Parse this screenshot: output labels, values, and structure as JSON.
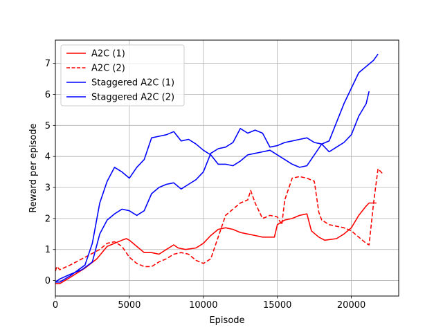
{
  "chart_data": {
    "type": "line",
    "xlabel": "Episode",
    "ylabel": "Reward per episode",
    "xlim": [
      0,
      23200
    ],
    "ylim": [
      -0.5,
      7.75
    ],
    "xticks": [
      0,
      5000,
      10000,
      15000,
      20000
    ],
    "yticks": [
      0,
      1,
      2,
      3,
      4,
      5,
      6,
      7
    ],
    "grid": true,
    "legend_position": "upper-left",
    "series": [
      {
        "name": "A2C (1)",
        "color": "#ff0000",
        "dash": "solid",
        "x": [
          0,
          300,
          1000,
          2000,
          2800,
          3500,
          4000,
          4500,
          4800,
          5000,
          5500,
          6000,
          6500,
          7000,
          7500,
          8000,
          8300,
          8800,
          9500,
          10000,
          10500,
          11000,
          11500,
          12000,
          12500,
          13000,
          13500,
          14000,
          14500,
          14800,
          15000,
          15500,
          16000,
          16500,
          17000,
          17300,
          17800,
          18200,
          19000,
          19500,
          20000,
          20500,
          21000,
          21200,
          21700
        ],
        "y": [
          -0.1,
          -0.1,
          0.1,
          0.4,
          0.7,
          1.1,
          1.2,
          1.3,
          1.35,
          1.3,
          1.1,
          0.9,
          0.9,
          0.85,
          1.0,
          1.15,
          1.05,
          1.0,
          1.05,
          1.2,
          1.45,
          1.65,
          1.7,
          1.65,
          1.55,
          1.5,
          1.45,
          1.4,
          1.4,
          1.4,
          1.8,
          1.95,
          2.0,
          2.1,
          2.15,
          1.6,
          1.4,
          1.3,
          1.35,
          1.5,
          1.7,
          2.1,
          2.4,
          2.5,
          2.5
        ]
      },
      {
        "name": "A2C (2)",
        "color": "#ff0000",
        "dash": "dashed",
        "x": [
          0,
          100,
          300,
          1000,
          2000,
          3000,
          3500,
          4000,
          4500,
          5000,
          5500,
          6000,
          6500,
          7000,
          7500,
          8000,
          8500,
          9000,
          9500,
          10000,
          10500,
          11000,
          11500,
          12000,
          12500,
          13000,
          13200,
          13500,
          14000,
          14500,
          15000,
          15300,
          15500,
          16000,
          16500,
          17000,
          17500,
          17800,
          18000,
          18500,
          19000,
          19500,
          20000,
          20500,
          21000,
          21200,
          21500,
          21800,
          22100
        ],
        "y": [
          0.3,
          0.45,
          0.35,
          0.5,
          0.75,
          1.0,
          1.2,
          1.25,
          1.1,
          0.75,
          0.55,
          0.45,
          0.45,
          0.6,
          0.7,
          0.85,
          0.9,
          0.85,
          0.65,
          0.55,
          0.7,
          1.4,
          2.1,
          2.3,
          2.5,
          2.6,
          2.9,
          2.5,
          2.0,
          2.1,
          2.05,
          1.8,
          2.6,
          3.3,
          3.35,
          3.3,
          3.2,
          2.2,
          1.95,
          1.8,
          1.75,
          1.7,
          1.6,
          1.4,
          1.2,
          1.15,
          2.5,
          3.6,
          3.45
        ]
      },
      {
        "name": "Staggered A2C (1)",
        "color": "#0000ff",
        "dash": "solid",
        "x": [
          0,
          300,
          1000,
          2000,
          2500,
          3000,
          3500,
          4000,
          4500,
          5000,
          5500,
          6000,
          6500,
          7000,
          7500,
          8000,
          8500,
          9000,
          9500,
          10000,
          10500,
          11000,
          11500,
          12000,
          12500,
          13000,
          13500,
          14000,
          14500,
          15000,
          15500,
          16000,
          16500,
          17000,
          17500,
          18000,
          18500,
          19000,
          19500,
          20000,
          20500,
          21000,
          21500,
          21800
        ],
        "y": [
          -0.05,
          -0.05,
          0.15,
          0.5,
          1.2,
          2.5,
          3.2,
          3.65,
          3.5,
          3.3,
          3.65,
          3.9,
          4.6,
          4.65,
          4.7,
          4.8,
          4.5,
          4.55,
          4.4,
          4.2,
          4.05,
          3.75,
          3.75,
          3.7,
          3.85,
          4.05,
          4.1,
          4.15,
          4.2,
          4.05,
          3.9,
          3.75,
          3.65,
          3.7,
          4.05,
          4.4,
          4.5,
          5.1,
          5.7,
          6.2,
          6.7,
          6.9,
          7.1,
          7.3
        ]
      },
      {
        "name": "Staggered A2C (2)",
        "color": "#0000ff",
        "dash": "solid",
        "x": [
          0,
          300,
          1000,
          1800,
          2500,
          3000,
          3500,
          4000,
          4500,
          5000,
          5500,
          6000,
          6500,
          7000,
          7500,
          8000,
          8500,
          9000,
          9500,
          10000,
          10500,
          11000,
          11500,
          12000,
          12500,
          13000,
          13500,
          14000,
          14500,
          15000,
          15500,
          16000,
          16500,
          17000,
          17500,
          18000,
          18500,
          19000,
          19500,
          20000,
          20500,
          21000,
          21200
        ],
        "y": [
          -0.05,
          0.05,
          0.2,
          0.35,
          0.6,
          1.5,
          1.95,
          2.15,
          2.3,
          2.25,
          2.1,
          2.25,
          2.8,
          3.0,
          3.1,
          3.15,
          2.95,
          3.1,
          3.25,
          3.5,
          4.1,
          4.25,
          4.3,
          4.45,
          4.9,
          4.75,
          4.85,
          4.75,
          4.3,
          4.35,
          4.45,
          4.5,
          4.55,
          4.6,
          4.45,
          4.4,
          4.15,
          4.3,
          4.45,
          4.7,
          5.3,
          5.7,
          6.1
        ]
      }
    ]
  }
}
